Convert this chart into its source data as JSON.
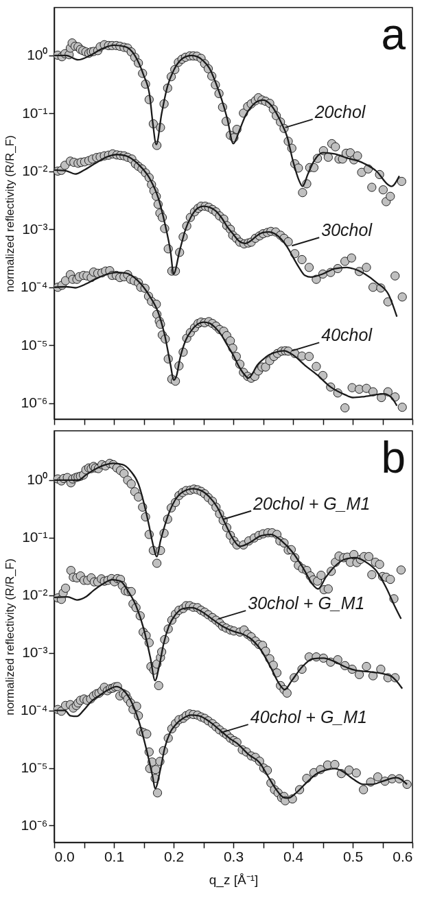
{
  "chart_data": [
    {
      "type": "scatter",
      "ylabel": "normalized reflectivity (R/R_F)",
      "log": true,
      "grid": false,
      "marker": "circle",
      "tick_labels": "y",
      "xlim": [
        0,
        0.6
      ],
      "xticks": [
        {
          "value": 0,
          "label": null
        },
        {
          "value": 0.05,
          "label": null
        },
        {
          "value": 0.1,
          "label": null
        },
        {
          "value": 0.15,
          "label": null
        },
        {
          "value": 0.2,
          "label": null
        },
        {
          "value": 0.25,
          "label": null
        },
        {
          "value": 0.3,
          "label": null
        },
        {
          "value": 0.35,
          "label": null
        },
        {
          "value": 0.4,
          "label": null
        },
        {
          "value": 0.45,
          "label": null
        },
        {
          "value": 0.5,
          "label": null
        },
        {
          "value": 0.55,
          "label": null
        },
        {
          "value": 0.6,
          "label": null
        }
      ],
      "ylim": [
        5.3e-07,
        6.7
      ],
      "yticks": [
        {
          "value": 1,
          "label": "10⁰"
        },
        {
          "value": 0.1,
          "label": "10⁻¹"
        },
        {
          "value": 0.01,
          "label": "10⁻²"
        },
        {
          "value": 0.001,
          "label": "10⁻³"
        },
        {
          "value": 0.0001,
          "label": "10⁻⁴"
        },
        {
          "value": 1e-05,
          "label": "10⁻⁵"
        },
        {
          "value": 1e-06,
          "label": "10⁻⁶"
        }
      ],
      "annotations": [
        "a",
        {
          "text": "20chol",
          "x": 0.387,
          "y": 0.057
        },
        {
          "text": "30chol",
          "x": 0.398,
          "y": 0.00052
        },
        {
          "text": "40chol",
          "x": 0.398,
          "y": 8e-06
        }
      ],
      "series": [
        {
          "color": "#c0c0c0",
          "x": [
            0.006,
            0.013,
            0.018,
            0.025,
            0.027,
            0.03,
            0.035,
            0.04,
            0.044,
            0.048,
            0.053,
            0.058,
            0.062,
            0.066,
            0.073,
            0.077,
            0.084,
            0.091,
            0.097,
            0.104,
            0.11,
            0.117,
            0.123,
            0.129,
            0.135,
            0.141,
            0.148,
            0.153,
            0.159,
            0.166,
            0.172,
            0.178,
            0.184,
            0.19,
            0.196,
            0.202,
            0.208,
            0.214,
            0.22,
            0.227,
            0.233,
            0.239,
            0.246,
            0.252,
            0.258,
            0.264,
            0.27,
            0.276,
            0.282,
            0.288,
            0.295,
            0.301,
            0.306,
            0.317,
            0.324,
            0.33,
            0.337,
            0.342,
            0.348,
            0.354,
            0.361,
            0.367,
            0.372,
            0.379,
            0.385,
            0.392,
            0.398,
            0.403,
            0.409,
            0.416,
            0.423,
            0.428,
            0.435,
            0.441,
            0.451,
            0.459,
            0.465,
            0.471,
            0.477,
            0.483,
            0.489,
            0.496,
            0.502,
            0.508,
            0.515,
            0.526,
            0.532,
            0.545,
            0.551,
            0.556,
            0.563,
            0.582
          ],
          "values": [
            1.01,
            0.95,
            1.07,
            1.03,
            1.34,
            1.64,
            1.44,
            1.41,
            1.27,
            1.21,
            1.15,
            1.09,
            1.15,
            1.17,
            1.21,
            1.41,
            1.53,
            1.48,
            1.48,
            1.48,
            1.44,
            1.38,
            1.34,
            1.15,
            0.93,
            0.74,
            0.49,
            0.32,
            0.173,
            0.066,
            0.028,
            0.057,
            0.146,
            0.273,
            0.43,
            0.57,
            0.76,
            0.86,
            0.93,
            0.98,
            0.98,
            0.97,
            0.89,
            0.72,
            0.59,
            0.44,
            0.31,
            0.22,
            0.128,
            0.073,
            0.042,
            0.038,
            0.053,
            0.101,
            0.131,
            0.146,
            0.165,
            0.186,
            0.17,
            0.162,
            0.149,
            0.118,
            0.091,
            0.071,
            0.055,
            0.033,
            0.025,
            0.0135,
            0.0114,
            0.0043,
            0.0061,
            0.0116,
            0.0116,
            0.0167,
            0.0227,
            0.0175,
            0.03,
            0.0265,
            0.0163,
            0.0163,
            0.0205,
            0.0209,
            0.0158,
            0.0185,
            0.0096,
            0.011,
            0.0053,
            0.0088,
            0.0048,
            0.003,
            0.0037,
            0.0067
          ]
        },
        {
          "type": "line",
          "marker": "none",
          "color": "#1a1a1a",
          "x": [
            0,
            0.02,
            0.04,
            0.06,
            0.08,
            0.1,
            0.12,
            0.135,
            0.15,
            0.16,
            0.165,
            0.171,
            0.18,
            0.19,
            0.2,
            0.21,
            0.22,
            0.23,
            0.24,
            0.25,
            0.26,
            0.27,
            0.28,
            0.29,
            0.3,
            0.31,
            0.32,
            0.33,
            0.34,
            0.35,
            0.36,
            0.37,
            0.38,
            0.39,
            0.4,
            0.41,
            0.416,
            0.425,
            0.435,
            0.45,
            0.47,
            0.49,
            0.51,
            0.52,
            0.54,
            0.56,
            0.565,
            0.578
          ],
          "values": [
            1.0,
            1.0,
            0.84,
            1.0,
            1.3,
            1.5,
            1.4,
            1.0,
            0.45,
            0.2,
            0.07,
            0.029,
            0.1,
            0.3,
            0.55,
            0.8,
            0.95,
            1.0,
            0.95,
            0.8,
            0.6,
            0.35,
            0.18,
            0.08,
            0.03,
            0.05,
            0.09,
            0.13,
            0.16,
            0.17,
            0.15,
            0.11,
            0.07,
            0.04,
            0.015,
            0.007,
            0.0055,
            0.009,
            0.015,
            0.021,
            0.02,
            0.017,
            0.015,
            0.0135,
            0.01,
            0.0058,
            0.0055,
            0.0083
          ]
        },
        {
          "color": "#c0c0c0",
          "x": [
            0.006,
            0.012,
            0.018,
            0.027,
            0.033,
            0.04,
            0.045,
            0.051,
            0.058,
            0.064,
            0.071,
            0.077,
            0.084,
            0.091,
            0.098,
            0.105,
            0.111,
            0.117,
            0.123,
            0.13,
            0.136,
            0.141,
            0.147,
            0.153,
            0.159,
            0.163,
            0.167,
            0.171,
            0.174,
            0.177,
            0.181,
            0.185,
            0.191,
            0.197,
            0.203,
            0.21,
            0.216,
            0.222,
            0.228,
            0.235,
            0.241,
            0.246,
            0.253,
            0.259,
            0.265,
            0.271,
            0.277,
            0.284,
            0.289,
            0.295,
            0.299,
            0.305,
            0.311,
            0.318,
            0.325,
            0.33,
            0.337,
            0.344,
            0.35,
            0.357,
            0.363,
            0.371,
            0.379,
            0.385,
            0.392,
            0.403,
            0.415,
            0.427,
            0.439,
            0.45,
            0.463,
            0.475,
            0.487,
            0.498,
            0.511,
            0.523,
            0.534,
            0.547,
            0.559,
            0.571,
            0.583
          ],
          "values": [
            0.0101,
            0.0104,
            0.0127,
            0.015,
            0.0143,
            0.0138,
            0.0143,
            0.0146,
            0.0153,
            0.0163,
            0.0173,
            0.0177,
            0.0185,
            0.019,
            0.02,
            0.0192,
            0.0188,
            0.0185,
            0.0175,
            0.0163,
            0.0135,
            0.0122,
            0.011,
            0.0094,
            0.0078,
            0.0059,
            0.0046,
            0.0037,
            0.0027,
            0.0019,
            0.0016,
            0.00103,
            0.00046,
            0.00019,
            0.00019,
            0.0004,
            0.00074,
            0.00114,
            0.0016,
            0.002,
            0.0023,
            0.0025,
            0.0025,
            0.0024,
            0.0022,
            0.002,
            0.0017,
            0.0015,
            0.00116,
            0.001,
            0.00079,
            0.0007,
            0.0006,
            0.00056,
            0.00058,
            0.0006,
            0.0007,
            0.00077,
            0.00084,
            0.00088,
            0.00092,
            0.0009,
            0.00079,
            0.0007,
            0.00061,
            0.00038,
            0.0003,
            0.00022,
            0.000137,
            0.000169,
            0.00018,
            0.00021,
            0.00028,
            0.00032,
            0.000187,
            0.00022,
            0.0001,
            9.7e-05,
            5.6e-05,
            0.000157,
            6.8e-05
          ]
        },
        {
          "type": "line",
          "marker": "none",
          "color": "#1a1a1a",
          "x": [
            0,
            0.02,
            0.035,
            0.05,
            0.07,
            0.09,
            0.105,
            0.12,
            0.14,
            0.16,
            0.175,
            0.185,
            0.195,
            0.2,
            0.21,
            0.22,
            0.23,
            0.24,
            0.25,
            0.26,
            0.27,
            0.28,
            0.29,
            0.3,
            0.31,
            0.32,
            0.33,
            0.34,
            0.35,
            0.36,
            0.37,
            0.38,
            0.39,
            0.4,
            0.41,
            0.42,
            0.43,
            0.45,
            0.47,
            0.49,
            0.5,
            0.52,
            0.54,
            0.56,
            0.574
          ],
          "values": [
            0.0105,
            0.0102,
            0.009,
            0.0105,
            0.014,
            0.018,
            0.0195,
            0.0185,
            0.0135,
            0.0075,
            0.0033,
            0.0013,
            0.0004,
            0.00017,
            0.00042,
            0.001,
            0.0017,
            0.0023,
            0.0025,
            0.0024,
            0.0021,
            0.0016,
            0.0011,
            0.00082,
            0.00062,
            0.00057,
            0.00064,
            0.00078,
            0.00088,
            0.0009,
            0.00083,
            0.00068,
            0.0005,
            0.00033,
            0.00022,
            0.00016,
            0.00015,
            0.00017,
            0.00021,
            0.00022,
            0.00021,
            0.00017,
            0.00012,
            7.5e-05,
            3.1e-05
          ]
        },
        {
          "color": "#c0c0c0",
          "x": [
            0.006,
            0.013,
            0.019,
            0.027,
            0.031,
            0.038,
            0.042,
            0.049,
            0.055,
            0.062,
            0.066,
            0.073,
            0.08,
            0.086,
            0.093,
            0.097,
            0.104,
            0.11,
            0.117,
            0.123,
            0.128,
            0.134,
            0.141,
            0.145,
            0.152,
            0.158,
            0.163,
            0.171,
            0.172,
            0.176,
            0.178,
            0.181,
            0.186,
            0.191,
            0.197,
            0.203,
            0.209,
            0.216,
            0.222,
            0.228,
            0.235,
            0.241,
            0.246,
            0.252,
            0.259,
            0.265,
            0.271,
            0.277,
            0.284,
            0.289,
            0.295,
            0.299,
            0.305,
            0.311,
            0.317,
            0.324,
            0.33,
            0.336,
            0.342,
            0.348,
            0.354,
            0.361,
            0.368,
            0.374,
            0.381,
            0.387,
            0.392,
            0.403,
            0.415,
            0.427,
            0.439,
            0.45,
            0.463,
            0.475,
            0.487,
            0.499,
            0.511,
            0.523,
            0.534,
            0.548,
            0.559,
            0.571,
            0.583
          ],
          "values": [
            0.0001,
            0.000108,
            0.00013,
            0.000165,
            0.000137,
            0.000137,
            0.000152,
            0.00016,
            0.000157,
            0.000147,
            0.000183,
            0.000174,
            0.000177,
            0.00019,
            0.000193,
            0.00016,
            0.00016,
            0.000147,
            0.000152,
            0.000165,
            0.000137,
            0.00013,
            0.00012,
            0.0001,
            9.6e-05,
            7e-05,
            5.7e-05,
            5.1e-05,
            3.4e-05,
            2.6e-05,
            2.3e-05,
            1.5e-05,
            1.28e-05,
            5.8e-06,
            2.6e-06,
            2.4e-06,
            4.4e-06,
            7.6e-06,
            1.32e-05,
            1.65e-05,
            2e-05,
            2.37e-05,
            2.5e-05,
            2.44e-05,
            2.55e-05,
            2.37e-05,
            2.14e-05,
            1.87e-05,
            1.74e-05,
            1.46e-05,
            1.19e-05,
            8.9e-06,
            6.4e-06,
            4.7e-06,
            3.4e-06,
            2.9e-06,
            2.7e-06,
            2.9e-06,
            3.6e-06,
            4.2e-06,
            4.2e-06,
            5.4e-06,
            6.4e-06,
            7.2e-06,
            7.9e-06,
            8e-06,
            7.9e-06,
            7.2e-06,
            6.5e-06,
            6.4e-06,
            4.3e-06,
            3e-06,
            1.9e-06,
            1.5e-06,
            8.3e-07,
            1.85e-06,
            1.74e-06,
            1.8e-06,
            1.57e-06,
            1.25e-06,
            1.57e-06,
            1.28e-06,
            8.5e-07
          ]
        },
        {
          "type": "line",
          "marker": "none",
          "color": "#1a1a1a",
          "x": [
            0,
            0.02,
            0.035,
            0.05,
            0.07,
            0.09,
            0.105,
            0.12,
            0.14,
            0.16,
            0.175,
            0.185,
            0.195,
            0.2,
            0.205,
            0.21,
            0.22,
            0.23,
            0.24,
            0.25,
            0.26,
            0.27,
            0.28,
            0.29,
            0.3,
            0.31,
            0.32,
            0.325,
            0.33,
            0.34,
            0.35,
            0.36,
            0.37,
            0.385,
            0.4,
            0.42,
            0.44,
            0.463,
            0.487,
            0.5,
            0.52,
            0.552,
            0.565,
            0.574
          ],
          "values": [
            0.0001,
            0.000102,
            9.8e-05,
            0.00011,
            0.00014,
            0.00017,
            0.00018,
            0.000175,
            0.00013,
            7e-05,
            3.5e-05,
            1.5e-05,
            4.5e-06,
            2.5e-06,
            3e-06,
            5.5e-06,
            1.2e-05,
            1.8e-05,
            2.3e-05,
            2.5e-05,
            2.4e-05,
            2e-05,
            1.5e-05,
            1e-05,
            6.7e-06,
            4.2e-06,
            3e-06,
            2.7e-06,
            3e-06,
            4.5e-06,
            5.7e-06,
            6.8e-06,
            7.5e-06,
            8e-06,
            6.8e-06,
            4.5e-06,
            3.1e-06,
            1.9e-06,
            1.4e-06,
            1.25e-06,
            1.3e-06,
            1.45e-06,
            1.25e-06,
            9e-07
          ]
        }
      ]
    },
    {
      "type": "scatter",
      "xlabel": "q_z [Å⁻¹]",
      "ylabel": "normalized reflectivity (R/R_F)",
      "log": true,
      "grid": false,
      "marker": "circle",
      "xlim": [
        0,
        0.6
      ],
      "xticks": [
        {
          "value": 0,
          "label": "0.0"
        },
        {
          "value": 0.05,
          "label": null
        },
        {
          "value": 0.1,
          "label": "0.1"
        },
        {
          "value": 0.15,
          "label": null
        },
        {
          "value": 0.2,
          "label": "0.2"
        },
        {
          "value": 0.25,
          "label": null
        },
        {
          "value": 0.3,
          "label": "0.3"
        },
        {
          "value": 0.35,
          "label": null
        },
        {
          "value": 0.4,
          "label": "0.4"
        },
        {
          "value": 0.45,
          "label": null
        },
        {
          "value": 0.5,
          "label": "0.5"
        },
        {
          "value": 0.55,
          "label": null
        },
        {
          "value": 0.6,
          "label": "0.6"
        }
      ],
      "ylim": [
        5.1e-07,
        7.2
      ],
      "yticks": [
        {
          "value": 1,
          "label": "10⁰"
        },
        {
          "value": 0.1,
          "label": "10⁻¹"
        },
        {
          "value": 0.01,
          "label": "10⁻²"
        },
        {
          "value": 0.001,
          "label": "10⁻³"
        },
        {
          "value": 0.0001,
          "label": "10⁻⁴"
        },
        {
          "value": 1e-05,
          "label": "10⁻⁵"
        },
        {
          "value": 1e-06,
          "label": "10⁻⁶"
        }
      ],
      "annotations": [
        "b",
        {
          "text": "20chol + G_M1",
          "x": 0.284,
          "y": 0.21
        },
        {
          "text": "30chol + G_M1",
          "x": 0.275,
          "y": 0.0039
        },
        {
          "text": "40chol + G_M1",
          "x": 0.279,
          "y": 4.1e-05
        }
      ],
      "series": [
        {
          "color": "#c0c0c0",
          "x": [
            0.006,
            0.012,
            0.016,
            0.022,
            0.028,
            0.031,
            0.036,
            0.04,
            0.044,
            0.049,
            0.053,
            0.058,
            0.062,
            0.066,
            0.069,
            0.074,
            0.08,
            0.086,
            0.093,
            0.099,
            0.105,
            0.111,
            0.117,
            0.123,
            0.129,
            0.135,
            0.141,
            0.148,
            0.153,
            0.159,
            0.166,
            0.172,
            0.178,
            0.184,
            0.19,
            0.196,
            0.203,
            0.209,
            0.215,
            0.221,
            0.228,
            0.234,
            0.24,
            0.246,
            0.252,
            0.258,
            0.265,
            0.271,
            0.277,
            0.283,
            0.289,
            0.295,
            0.301,
            0.306,
            0.317,
            0.326,
            0.335,
            0.343,
            0.35,
            0.358,
            0.365,
            0.373,
            0.378,
            0.385,
            0.392,
            0.397,
            0.403,
            0.409,
            0.416,
            0.423,
            0.429,
            0.434,
            0.441,
            0.447,
            0.452,
            0.459,
            0.464,
            0.471,
            0.477,
            0.485,
            0.491,
            0.496,
            0.502,
            0.507,
            0.513,
            0.519,
            0.527,
            0.532,
            0.538,
            0.545,
            0.55,
            0.556,
            0.563,
            0.569,
            0.581
          ],
          "values": [
            1.05,
            0.97,
            1.07,
            1.11,
            0.9,
            1.05,
            1.11,
            1.14,
            1.17,
            1.23,
            1.51,
            1.63,
            1.59,
            1.73,
            1.63,
            1.59,
            1.86,
            1.77,
            1.96,
            1.86,
            1.63,
            1.47,
            1.3,
            1.0,
            0.86,
            0.63,
            0.51,
            0.34,
            0.23,
            0.114,
            0.06,
            0.036,
            0.06,
            0.12,
            0.21,
            0.33,
            0.41,
            0.54,
            0.61,
            0.66,
            0.67,
            0.7,
            0.68,
            0.64,
            0.58,
            0.5,
            0.43,
            0.34,
            0.26,
            0.2,
            0.15,
            0.11,
            0.088,
            0.075,
            0.075,
            0.088,
            0.099,
            0.11,
            0.117,
            0.122,
            0.122,
            0.114,
            0.088,
            0.081,
            0.061,
            0.062,
            0.045,
            0.033,
            0.029,
            0.027,
            0.0217,
            0.0185,
            0.0176,
            0.0223,
            0.0125,
            0.0129,
            0.0261,
            0.0375,
            0.048,
            0.045,
            0.046,
            0.0375,
            0.051,
            0.037,
            0.042,
            0.047,
            0.047,
            0.0228,
            0.0375,
            0.0345,
            0.0212,
            0.0206,
            0.0189,
            0.0087,
            0.0275
          ]
        },
        {
          "type": "line",
          "marker": "none",
          "color": "#1a1a1a",
          "x": [
            0,
            0.04,
            0.053,
            0.066,
            0.086,
            0.099,
            0.115,
            0.128,
            0.141,
            0.15,
            0.159,
            0.165,
            0.172,
            0.178,
            0.185,
            0.194,
            0.203,
            0.216,
            0.233,
            0.246,
            0.26,
            0.273,
            0.286,
            0.299,
            0.311,
            0.328,
            0.346,
            0.363,
            0.381,
            0.398,
            0.416,
            0.433,
            0.442,
            0.455,
            0.469,
            0.486,
            0.504,
            0.521,
            0.539,
            0.556,
            0.57,
            0.581
          ],
          "values": [
            1.0,
            1.0,
            1.23,
            1.5,
            1.86,
            1.96,
            1.86,
            1.44,
            0.86,
            0.41,
            0.16,
            0.08,
            0.047,
            0.088,
            0.16,
            0.3,
            0.46,
            0.63,
            0.71,
            0.66,
            0.51,
            0.34,
            0.18,
            0.097,
            0.071,
            0.083,
            0.108,
            0.114,
            0.088,
            0.058,
            0.031,
            0.0154,
            0.0129,
            0.0206,
            0.031,
            0.042,
            0.045,
            0.0385,
            0.027,
            0.0136,
            0.0066,
            0.0039
          ]
        },
        {
          "color": "#c0c0c0",
          "x": [
            0.006,
            0.012,
            0.015,
            0.019,
            0.028,
            0.032,
            0.038,
            0.044,
            0.05,
            0.056,
            0.062,
            0.067,
            0.073,
            0.079,
            0.084,
            0.09,
            0.096,
            0.101,
            0.106,
            0.111,
            0.114,
            0.119,
            0.124,
            0.129,
            0.132,
            0.137,
            0.144,
            0.149,
            0.154,
            0.159,
            0.162,
            0.167,
            0.172,
            0.175,
            0.178,
            0.18,
            0.185,
            0.191,
            0.197,
            0.203,
            0.209,
            0.216,
            0.221,
            0.227,
            0.233,
            0.24,
            0.246,
            0.252,
            0.258,
            0.265,
            0.271,
            0.277,
            0.282,
            0.288,
            0.295,
            0.301,
            0.311,
            0.318,
            0.324,
            0.33,
            0.337,
            0.343,
            0.349,
            0.354,
            0.361,
            0.367,
            0.373,
            0.379,
            0.385,
            0.39,
            0.402,
            0.415,
            0.427,
            0.439,
            0.451,
            0.463,
            0.475,
            0.487,
            0.499,
            0.511,
            0.523,
            0.534,
            0.547,
            0.559,
            0.571
          ],
          "values": [
            0.009,
            0.0085,
            0.011,
            0.0133,
            0.027,
            0.0206,
            0.0201,
            0.0217,
            0.0182,
            0.0182,
            0.0201,
            0.0171,
            0.0171,
            0.0193,
            0.0176,
            0.0182,
            0.0195,
            0.0172,
            0.0195,
            0.0189,
            0.0148,
            0.012,
            0.0116,
            0.0116,
            0.0071,
            0.0061,
            0.0044,
            0.0023,
            0.002,
            0.0015,
            0.00058,
            0.0005,
            0.00064,
            0.00027,
            0.00083,
            0.00104,
            0.0017,
            0.0026,
            0.0037,
            0.0047,
            0.0055,
            0.0059,
            0.0066,
            0.0066,
            0.0062,
            0.0061,
            0.0055,
            0.0051,
            0.0046,
            0.0041,
            0.0037,
            0.0033,
            0.0029,
            0.0027,
            0.0025,
            0.0024,
            0.0023,
            0.0025,
            0.0021,
            0.0019,
            0.0016,
            0.0014,
            0.00135,
            0.00107,
            0.00079,
            0.00061,
            0.00045,
            0.00027,
            0.00023,
            0.0002,
            0.00037,
            0.00052,
            0.00085,
            0.00085,
            0.00081,
            0.00069,
            0.00076,
            0.0006,
            0.00052,
            0.00042,
            0.00058,
            0.0004,
            0.00052,
            0.00037,
            0.00037
          ]
        },
        {
          "type": "line",
          "marker": "none",
          "color": "#1a1a1a",
          "x": [
            0,
            0.0225,
            0.038,
            0.053,
            0.066,
            0.082,
            0.097,
            0.111,
            0.123,
            0.137,
            0.15,
            0.161,
            0.169,
            0.176,
            0.183,
            0.192,
            0.203,
            0.216,
            0.231,
            0.246,
            0.264,
            0.282,
            0.304,
            0.311,
            0.328,
            0.346,
            0.363,
            0.376,
            0.386,
            0.398,
            0.416,
            0.433,
            0.451,
            0.469,
            0.486,
            0.504,
            0.526,
            0.548,
            0.565,
            0.583
          ],
          "values": [
            0.0092,
            0.0094,
            0.0083,
            0.0094,
            0.0122,
            0.0159,
            0.0186,
            0.0176,
            0.0122,
            0.0066,
            0.0026,
            0.00083,
            0.00033,
            0.0006,
            0.0014,
            0.0029,
            0.0046,
            0.0059,
            0.0061,
            0.0053,
            0.0039,
            0.0029,
            0.0023,
            0.0022,
            0.0018,
            0.00113,
            0.00055,
            0.0003,
            0.00023,
            0.00033,
            0.00058,
            0.00079,
            0.00081,
            0.00071,
            0.00058,
            0.0005,
            0.00047,
            0.00044,
            0.00039,
            0.00024
          ]
        },
        {
          "color": "#c0c0c0",
          "x": [
            0.006,
            0.012,
            0.019,
            0.027,
            0.032,
            0.037,
            0.04,
            0.044,
            0.05,
            0.055,
            0.061,
            0.066,
            0.071,
            0.075,
            0.08,
            0.084,
            0.089,
            0.094,
            0.098,
            0.102,
            0.106,
            0.11,
            0.116,
            0.12,
            0.123,
            0.128,
            0.132,
            0.138,
            0.141,
            0.145,
            0.15,
            0.155,
            0.159,
            0.16,
            0.164,
            0.169,
            0.17,
            0.173,
            0.177,
            0.183,
            0.191,
            0.197,
            0.203,
            0.209,
            0.216,
            0.221,
            0.227,
            0.233,
            0.24,
            0.246,
            0.252,
            0.258,
            0.265,
            0.271,
            0.277,
            0.284,
            0.289,
            0.295,
            0.301,
            0.306,
            0.315,
            0.322,
            0.33,
            0.337,
            0.344,
            0.351,
            0.357,
            0.363,
            0.369,
            0.375,
            0.381,
            0.385,
            0.387,
            0.399,
            0.411,
            0.423,
            0.435,
            0.446,
            0.458,
            0.47,
            0.481,
            0.494,
            0.506,
            0.518,
            0.53,
            0.542,
            0.554,
            0.566,
            0.578,
            0.591
          ],
          "values": [
            0.000104,
            9.7e-05,
            0.000122,
            0.000126,
            0.00011,
            0.000122,
            0.000135,
            0.00015,
            0.000158,
            0.00015,
            0.000158,
            0.000179,
            0.000195,
            0.000199,
            0.00022,
            0.000252,
            0.00022,
            0.000239,
            0.000244,
            0.000257,
            0.00026,
            0.000179,
            0.000195,
            0.000185,
            0.000158,
            0.000135,
            0.000104,
            0.000118,
            8.1e-05,
            4.3e-05,
            4.1e-05,
            3.9e-05,
            1.9e-05,
            9.8e-06,
            1.27e-05,
            6.6e-06,
            9.4e-06,
            3.7e-06,
            1.3e-05,
            2e-05,
            3.3e-05,
            4.8e-05,
            5.9e-05,
            6.9e-05,
            7.3e-05,
            8.1e-05,
            8.7e-05,
            8.5e-05,
            8.3e-05,
            7.7e-05,
            7.3e-05,
            6.6e-05,
            5.9e-05,
            5.2e-05,
            4.6e-05,
            4.1e-05,
            3.8e-05,
            3.3e-05,
            3e-05,
            2.8e-05,
            2.07e-05,
            1.9e-05,
            1.62e-05,
            1.53e-05,
            1.31e-05,
            1e-05,
            9.1e-06,
            5.5e-06,
            4.2e-06,
            3.7e-06,
            3.05e-06,
            3.2e-06,
            2.7e-06,
            2.9e-06,
            4.2e-06,
            6.6e-06,
            8.3e-06,
            9.4e-06,
            1.13e-05,
            1.15e-05,
            8e-06,
            9.2e-06,
            8.2e-06,
            4.2e-06,
            5.7e-06,
            7e-06,
            5.9e-06,
            6.5e-06,
            6.5e-06,
            5.2e-06
          ]
        },
        {
          "type": "line",
          "marker": "none",
          "color": "#1a1a1a",
          "x": [
            0,
            0.006,
            0.018,
            0.027,
            0.038,
            0.049,
            0.062,
            0.077,
            0.091,
            0.104,
            0.115,
            0.128,
            0.141,
            0.154,
            0.165,
            0.169,
            0.178,
            0.185,
            0.194,
            0.203,
            0.216,
            0.229,
            0.242,
            0.26,
            0.277,
            0.295,
            0.306,
            0.326,
            0.344,
            0.358,
            0.372,
            0.385,
            0.392,
            0.404,
            0.422,
            0.44,
            0.458,
            0.47,
            0.481,
            0.5,
            0.518,
            0.532,
            0.55,
            0.573,
            0.591
          ],
          "values": [
            0.0001,
            0.0001,
            0.0001,
            8.1e-05,
            7.9e-05,
            0.0001,
            0.000143,
            0.000185,
            0.00023,
            0.00026,
            0.00023,
            0.00015,
            6.9e-05,
            2.2e-05,
            7e-06,
            4.4e-06,
            9.6e-06,
            2.2e-05,
            4.1e-05,
            5.6e-05,
            7.3e-05,
            8.3e-05,
            8.1e-05,
            6.4e-05,
            4.6e-05,
            3.2e-05,
            2.7e-05,
            1.7e-05,
            1.24e-05,
            7.2e-06,
            4.2e-06,
            3.05e-06,
            3e-06,
            3.6e-06,
            5.5e-06,
            8e-06,
            9.4e-06,
            9.8e-06,
            9e-06,
            6.5e-06,
            5.2e-06,
            5.2e-06,
            5.9e-06,
            6.8e-06,
            5.2e-06
          ]
        }
      ]
    }
  ]
}
